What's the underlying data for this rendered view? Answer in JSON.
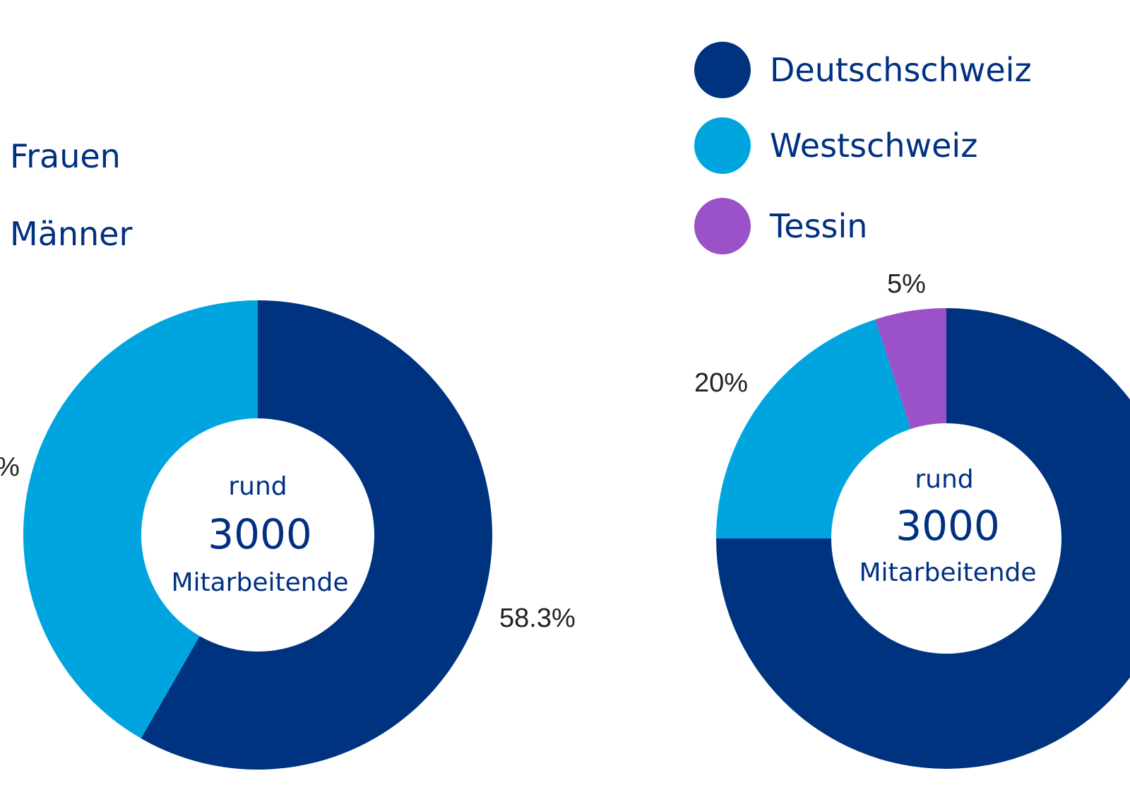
{
  "colors": {
    "dark_blue": "#00337f",
    "light_blue": "#00a5e0",
    "purple": "#9b51c8",
    "text": "#003082"
  },
  "chart_data": [
    {
      "type": "pie",
      "variant": "donut",
      "legend": [
        "Frauen",
        "Männer"
      ],
      "legend_placement": "top-left",
      "slices": [
        {
          "name": "Männer",
          "value": 58.3,
          "label": "58.3%",
          "color": "#00337f"
        },
        {
          "name": "Frauen",
          "value": 41.7,
          "label": "%",
          "color": "#00a5e0"
        }
      ],
      "center": {
        "line1": "rund",
        "line2": "3000",
        "line3": "Mitarbeitende"
      }
    },
    {
      "type": "pie",
      "variant": "donut",
      "legend": [
        "Deutschschweiz",
        "Westschweiz",
        "Tessin"
      ],
      "legend_placement": "top-right",
      "slices": [
        {
          "name": "Deutschschweiz",
          "value": 75,
          "label": "",
          "color": "#00337f"
        },
        {
          "name": "Westschweiz",
          "value": 20,
          "label": "20%",
          "color": "#00a5e0"
        },
        {
          "name": "Tessin",
          "value": 5,
          "label": "5%",
          "color": "#9b51c8"
        }
      ],
      "center": {
        "line1": "rund",
        "line2": "3000",
        "line3": "Mitarbeitende"
      }
    }
  ]
}
